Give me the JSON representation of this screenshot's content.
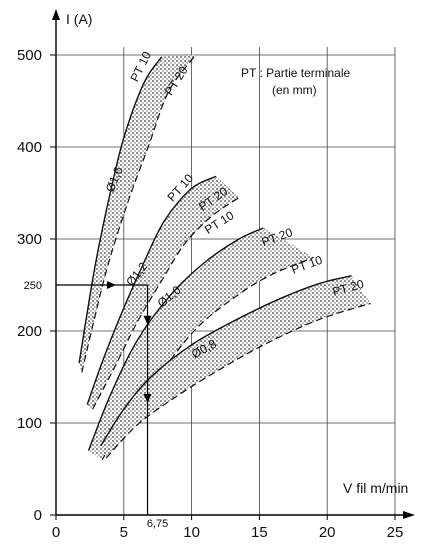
{
  "chart_data": {
    "type": "area",
    "title": "",
    "xlabel": "V fil m/min",
    "ylabel": "I (A)",
    "xlim": [
      0,
      25
    ],
    "ylim": [
      0,
      500
    ],
    "xticks": [
      0,
      5,
      10,
      15,
      20,
      25
    ],
    "yticks": [
      0,
      100,
      200,
      300,
      400,
      500
    ],
    "grid": true,
    "annotation": {
      "line1": "PT : Partie terminale",
      "line2": "(en mm)"
    },
    "reference": {
      "current": 250,
      "current_label": "250",
      "wire_speed": 6.75,
      "wire_speed_label": "6,75"
    },
    "series": [
      {
        "name": "Ø1,6",
        "pt10_label": "PT 10",
        "pt20_label": "PT 20",
        "pt10": [
          [
            1.7,
            165
          ],
          [
            2.3,
            220
          ],
          [
            3.0,
            280
          ],
          [
            4.0,
            350
          ],
          [
            5.0,
            410
          ],
          [
            6.5,
            470
          ],
          [
            7.8,
            498
          ]
        ],
        "pt20": [
          [
            1.9,
            155
          ],
          [
            2.7,
            205
          ],
          [
            3.8,
            270
          ],
          [
            5.3,
            340
          ],
          [
            6.8,
            400
          ],
          [
            8.3,
            460
          ],
          [
            10.3,
            500
          ]
        ]
      },
      {
        "name": "Ø1,2",
        "pt10_label": "PT 10",
        "pt20_label": "PT 20",
        "pt10": [
          [
            2.3,
            120
          ],
          [
            3.5,
            170
          ],
          [
            5.0,
            225
          ],
          [
            6.5,
            275
          ],
          [
            8.0,
            320
          ],
          [
            10.0,
            355
          ],
          [
            11.8,
            368
          ]
        ],
        "pt20": [
          [
            2.7,
            115
          ],
          [
            4.3,
            160
          ],
          [
            6.0,
            210
          ],
          [
            7.8,
            255
          ],
          [
            9.5,
            295
          ],
          [
            11.5,
            325
          ],
          [
            13.5,
            345
          ]
        ]
      },
      {
        "name": "Ø1,0",
        "pt10_label": "PT 10",
        "pt20_label": "PT 20",
        "pt10": [
          [
            2.4,
            70
          ],
          [
            4.0,
            130
          ],
          [
            6.0,
            190
          ],
          [
            8.5,
            240
          ],
          [
            11.0,
            275
          ],
          [
            13.5,
            300
          ],
          [
            15.3,
            312
          ]
        ],
        "pt20": [
          [
            3.4,
            60
          ],
          [
            5.5,
            110
          ],
          [
            8.0,
            160
          ],
          [
            10.5,
            205
          ],
          [
            13.5,
            240
          ],
          [
            16.0,
            262
          ],
          [
            19.0,
            280
          ]
        ]
      },
      {
        "name": "Ø0,8",
        "pt10_label": "PT 10",
        "pt20_label": "PT 20",
        "pt10": [
          [
            3.3,
            75
          ],
          [
            5.0,
            115
          ],
          [
            7.0,
            150
          ],
          [
            10.0,
            185
          ],
          [
            13.0,
            210
          ],
          [
            16.5,
            235
          ],
          [
            19.5,
            252
          ],
          [
            21.8,
            260
          ]
        ],
        "pt20": [
          [
            3.7,
            62
          ],
          [
            6.0,
            98
          ],
          [
            9.0,
            130
          ],
          [
            12.5,
            162
          ],
          [
            16.0,
            190
          ],
          [
            19.5,
            213
          ],
          [
            23.2,
            230
          ]
        ]
      }
    ]
  }
}
